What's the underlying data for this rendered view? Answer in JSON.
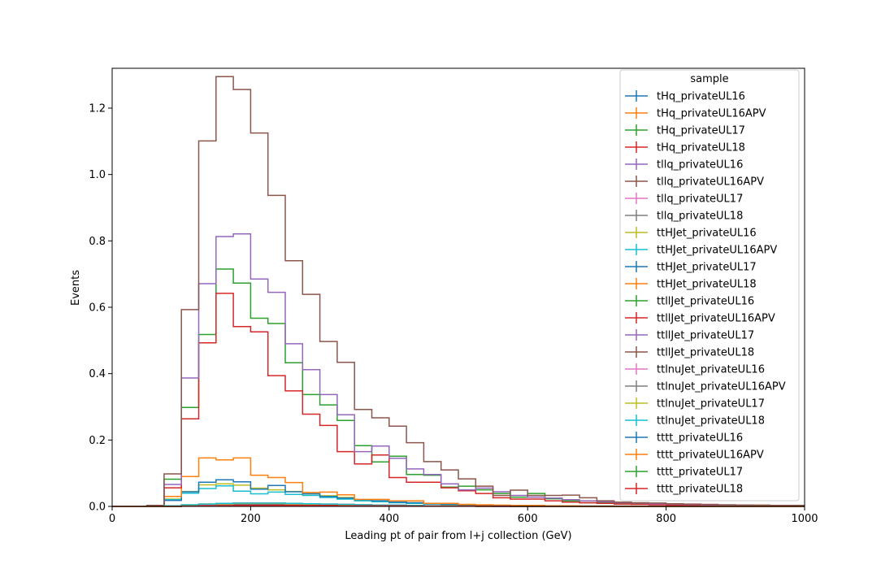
{
  "chart_data": {
    "type": "step-histogram",
    "xlabel": "Leading pt of pair from l+j collection (GeV)",
    "ylabel": "Events",
    "xlim": [
      0,
      1000
    ],
    "ylim": [
      0,
      1.32
    ],
    "xticks": [
      0,
      200,
      400,
      600,
      800,
      1000
    ],
    "yticks": [
      0.0,
      0.2,
      0.4,
      0.6,
      0.8,
      1.0,
      1.2
    ],
    "grid": false,
    "legend": {
      "title": "sample",
      "placement": "top-right"
    },
    "bin_edges": [
      0,
      25,
      50,
      75,
      100,
      125,
      150,
      175,
      200,
      225,
      250,
      275,
      300,
      325,
      350,
      375,
      400,
      425,
      450,
      475,
      500,
      525,
      550,
      575,
      600,
      625,
      650,
      675,
      700,
      725,
      750,
      775,
      800,
      825,
      850,
      875,
      900,
      925,
      950,
      975,
      1000
    ],
    "series": [
      {
        "name": "tHq_privateUL16",
        "color": "#1f77b4",
        "values": [
          0,
          0,
          0,
          0.001,
          0.002,
          0.003,
          0.004,
          0.004,
          0.005,
          0.005,
          0.004,
          0.004,
          0.003,
          0.003,
          0.002,
          0.002,
          0.002,
          0.001,
          0.001,
          0.001,
          0.001,
          0,
          0,
          0,
          0,
          0,
          0,
          0,
          0,
          0,
          0,
          0,
          0,
          0,
          0,
          0,
          0,
          0,
          0,
          0
        ]
      },
      {
        "name": "tHq_privateUL16APV",
        "color": "#ff7f0e",
        "values": [
          0,
          0,
          0,
          0.001,
          0.002,
          0.003,
          0.004,
          0.004,
          0.005,
          0.005,
          0.004,
          0.004,
          0.003,
          0.003,
          0.002,
          0.002,
          0.002,
          0.001,
          0.001,
          0.001,
          0.001,
          0,
          0,
          0,
          0,
          0,
          0,
          0,
          0,
          0,
          0,
          0,
          0,
          0,
          0,
          0,
          0,
          0,
          0,
          0
        ]
      },
      {
        "name": "tHq_privateUL17",
        "color": "#2ca02c",
        "values": [
          0,
          0,
          0,
          0.002,
          0.004,
          0.006,
          0.008,
          0.009,
          0.009,
          0.009,
          0.008,
          0.007,
          0.006,
          0.005,
          0.004,
          0.004,
          0.003,
          0.003,
          0.002,
          0.002,
          0.001,
          0.001,
          0.001,
          0,
          0,
          0,
          0,
          0,
          0,
          0,
          0,
          0,
          0,
          0,
          0,
          0,
          0,
          0,
          0,
          0
        ]
      },
      {
        "name": "tHq_privateUL18",
        "color": "#d62728",
        "values": [
          0,
          0,
          0,
          0.002,
          0.004,
          0.007,
          0.009,
          0.01,
          0.01,
          0.01,
          0.009,
          0.008,
          0.007,
          0.006,
          0.005,
          0.004,
          0.004,
          0.003,
          0.002,
          0.002,
          0.002,
          0.001,
          0.001,
          0,
          0,
          0,
          0,
          0,
          0,
          0,
          0,
          0,
          0,
          0,
          0,
          0,
          0,
          0,
          0,
          0
        ]
      },
      {
        "name": "tllq_privateUL16",
        "color": "#9467bd",
        "values": [
          0,
          0,
          0,
          0.001,
          0.003,
          0.005,
          0.006,
          0.007,
          0.007,
          0.007,
          0.006,
          0.005,
          0.005,
          0.004,
          0.003,
          0.003,
          0.002,
          0.002,
          0.002,
          0.001,
          0.001,
          0.001,
          0,
          0,
          0,
          0,
          0,
          0,
          0,
          0,
          0,
          0,
          0,
          0,
          0,
          0,
          0,
          0,
          0,
          0
        ]
      },
      {
        "name": "tllq_privateUL16APV",
        "color": "#8c564b",
        "values": [
          0,
          0,
          0,
          0.001,
          0.003,
          0.005,
          0.006,
          0.007,
          0.007,
          0.007,
          0.006,
          0.005,
          0.005,
          0.004,
          0.003,
          0.003,
          0.002,
          0.002,
          0.002,
          0.001,
          0.001,
          0.001,
          0,
          0,
          0,
          0,
          0,
          0,
          0,
          0,
          0,
          0,
          0,
          0,
          0,
          0,
          0,
          0,
          0,
          0
        ]
      },
      {
        "name": "tllq_privateUL17",
        "color": "#e377c2",
        "values": [
          0,
          0,
          0,
          0.001,
          0.003,
          0.005,
          0.007,
          0.008,
          0.008,
          0.008,
          0.007,
          0.006,
          0.005,
          0.004,
          0.004,
          0.003,
          0.003,
          0.002,
          0.002,
          0.001,
          0.001,
          0.001,
          0,
          0,
          0,
          0,
          0,
          0,
          0,
          0,
          0,
          0,
          0,
          0,
          0,
          0,
          0,
          0,
          0,
          0
        ]
      },
      {
        "name": "tllq_privateUL18",
        "color": "#7f7f7f",
        "values": [
          0,
          0,
          0,
          0.001,
          0.003,
          0.005,
          0.007,
          0.008,
          0.008,
          0.008,
          0.007,
          0.006,
          0.005,
          0.004,
          0.004,
          0.003,
          0.003,
          0.002,
          0.002,
          0.001,
          0.001,
          0.001,
          0,
          0,
          0,
          0,
          0,
          0,
          0,
          0,
          0,
          0,
          0,
          0,
          0,
          0,
          0,
          0,
          0,
          0
        ]
      },
      {
        "name": "ttHJet_privateUL16",
        "color": "#bcbd22",
        "values": [
          0,
          0,
          0,
          0.022,
          0.045,
          0.065,
          0.068,
          0.064,
          0.055,
          0.05,
          0.045,
          0.038,
          0.032,
          0.027,
          0.02,
          0.017,
          0.013,
          0.011,
          0.008,
          0.006,
          0.005,
          0.004,
          0.003,
          0.002,
          0.002,
          0.001,
          0.001,
          0.001,
          0.001,
          0,
          0,
          0,
          0,
          0,
          0,
          0,
          0,
          0,
          0,
          0
        ]
      },
      {
        "name": "ttHJet_privateUL16APV",
        "color": "#17becf",
        "values": [
          0,
          0,
          0,
          0.02,
          0.04,
          0.054,
          0.062,
          0.046,
          0.038,
          0.043,
          0.036,
          0.033,
          0.027,
          0.022,
          0.017,
          0.014,
          0.011,
          0.009,
          0.007,
          0.006,
          0.004,
          0.003,
          0.003,
          0.002,
          0.002,
          0.001,
          0.001,
          0.001,
          0.001,
          0,
          0,
          0,
          0,
          0,
          0,
          0,
          0,
          0,
          0,
          0
        ]
      },
      {
        "name": "ttHJet_privateUL17",
        "color": "#1f77b4",
        "values": [
          0,
          0,
          0,
          0.018,
          0.044,
          0.073,
          0.08,
          0.074,
          0.052,
          0.063,
          0.044,
          0.038,
          0.03,
          0.025,
          0.02,
          0.017,
          0.013,
          0.011,
          0.008,
          0.007,
          0.005,
          0.004,
          0.003,
          0.002,
          0.002,
          0.002,
          0.001,
          0.001,
          0.001,
          0.001,
          0,
          0,
          0,
          0,
          0,
          0,
          0,
          0,
          0,
          0
        ]
      },
      {
        "name": "ttHJet_privateUL18",
        "color": "#ff7f0e",
        "values": [
          0,
          0,
          0,
          0.03,
          0.09,
          0.146,
          0.14,
          0.146,
          0.094,
          0.087,
          0.072,
          0.042,
          0.043,
          0.035,
          0.021,
          0.021,
          0.017,
          0.017,
          0.009,
          0.009,
          0.006,
          0.005,
          0.004,
          0.003,
          0.003,
          0.002,
          0.002,
          0.001,
          0.001,
          0.001,
          0,
          0,
          0,
          0,
          0,
          0,
          0,
          0,
          0,
          0
        ]
      },
      {
        "name": "ttllJet_privateUL16",
        "color": "#2ca02c",
        "values": [
          0,
          0,
          0.002,
          0.082,
          0.298,
          0.518,
          0.715,
          0.673,
          0.567,
          0.551,
          0.433,
          0.337,
          0.306,
          0.259,
          0.183,
          0.134,
          0.151,
          0.096,
          0.094,
          0.058,
          0.061,
          0.05,
          0.039,
          0.028,
          0.039,
          0.023,
          0.017,
          0.011,
          0.012,
          0.009,
          0.007,
          0.006,
          0.005,
          0.004,
          0.004,
          0.003,
          0.003,
          0.002,
          0.002,
          0.002
        ]
      },
      {
        "name": "ttllJet_privateUL16APV",
        "color": "#d62728",
        "values": [
          0,
          0,
          0.002,
          0.056,
          0.264,
          0.493,
          0.642,
          0.542,
          0.526,
          0.394,
          0.348,
          0.278,
          0.244,
          0.165,
          0.128,
          0.155,
          0.087,
          0.073,
          0.073,
          0.056,
          0.047,
          0.039,
          0.026,
          0.022,
          0.022,
          0.017,
          0.013,
          0.011,
          0.009,
          0.007,
          0.006,
          0.005,
          0.004,
          0.004,
          0.003,
          0.003,
          0.002,
          0.002,
          0.002,
          0.002
        ]
      },
      {
        "name": "ttllJet_privateUL17",
        "color": "#9467bd",
        "values": [
          0,
          0,
          0.002,
          0.066,
          0.387,
          0.671,
          0.813,
          0.821,
          0.685,
          0.645,
          0.49,
          0.412,
          0.337,
          0.276,
          0.165,
          0.182,
          0.145,
          0.113,
          0.096,
          0.068,
          0.05,
          0.055,
          0.044,
          0.033,
          0.028,
          0.025,
          0.02,
          0.017,
          0.014,
          0.011,
          0.01,
          0.008,
          0.007,
          0.006,
          0.005,
          0.004,
          0.004,
          0.003,
          0.003,
          0.002
        ]
      },
      {
        "name": "ttllJet_privateUL18",
        "color": "#8c564b",
        "values": [
          0,
          0,
          0.003,
          0.098,
          0.593,
          1.101,
          1.295,
          1.256,
          1.125,
          0.937,
          0.74,
          0.639,
          0.497,
          0.434,
          0.292,
          0.267,
          0.242,
          0.192,
          0.135,
          0.11,
          0.083,
          0.061,
          0.033,
          0.049,
          0.033,
          0.033,
          0.034,
          0.026,
          0.017,
          0.013,
          0.011,
          0.01,
          0.008,
          0.007,
          0.006,
          0.005,
          0.004,
          0.004,
          0.003,
          0.003
        ]
      },
      {
        "name": "ttlnuJet_privateUL16",
        "color": "#e377c2",
        "values": [
          0,
          0,
          0,
          0.002,
          0.004,
          0.006,
          0.007,
          0.008,
          0.008,
          0.008,
          0.007,
          0.007,
          0.006,
          0.005,
          0.004,
          0.004,
          0.003,
          0.003,
          0.002,
          0.002,
          0.001,
          0.001,
          0.001,
          0,
          0,
          0,
          0,
          0,
          0,
          0,
          0,
          0,
          0,
          0,
          0,
          0,
          0,
          0,
          0,
          0
        ]
      },
      {
        "name": "ttlnuJet_privateUL16APV",
        "color": "#7f7f7f",
        "values": [
          0,
          0,
          0,
          0.002,
          0.004,
          0.006,
          0.007,
          0.008,
          0.008,
          0.008,
          0.007,
          0.007,
          0.006,
          0.005,
          0.004,
          0.004,
          0.003,
          0.003,
          0.002,
          0.002,
          0.001,
          0.001,
          0.001,
          0,
          0,
          0,
          0,
          0,
          0,
          0,
          0,
          0,
          0,
          0,
          0,
          0,
          0,
          0,
          0,
          0
        ]
      },
      {
        "name": "ttlnuJet_privateUL17",
        "color": "#bcbd22",
        "values": [
          0,
          0,
          0,
          0.002,
          0.005,
          0.007,
          0.008,
          0.009,
          0.009,
          0.009,
          0.008,
          0.007,
          0.006,
          0.005,
          0.005,
          0.004,
          0.003,
          0.003,
          0.002,
          0.002,
          0.002,
          0.001,
          0.001,
          0,
          0,
          0,
          0,
          0,
          0,
          0,
          0,
          0,
          0,
          0,
          0,
          0,
          0,
          0,
          0,
          0
        ]
      },
      {
        "name": "ttlnuJet_privateUL18",
        "color": "#17becf",
        "values": [
          0,
          0,
          0,
          0.002,
          0.005,
          0.007,
          0.009,
          0.01,
          0.01,
          0.01,
          0.009,
          0.008,
          0.007,
          0.006,
          0.005,
          0.004,
          0.004,
          0.003,
          0.002,
          0.002,
          0.002,
          0.001,
          0.001,
          0,
          0,
          0,
          0,
          0,
          0,
          0,
          0,
          0,
          0,
          0,
          0,
          0,
          0,
          0,
          0,
          0
        ]
      },
      {
        "name": "tttt_privateUL16",
        "color": "#1f77b4",
        "values": [
          0,
          0,
          0,
          0,
          0.001,
          0.001,
          0.001,
          0.002,
          0.002,
          0.002,
          0.002,
          0.002,
          0.002,
          0.002,
          0.002,
          0.002,
          0.001,
          0.001,
          0.001,
          0.001,
          0.001,
          0.001,
          0.001,
          0,
          0,
          0,
          0,
          0,
          0,
          0,
          0,
          0,
          0,
          0,
          0,
          0,
          0,
          0,
          0,
          0
        ]
      },
      {
        "name": "tttt_privateUL16APV",
        "color": "#ff7f0e",
        "values": [
          0,
          0,
          0,
          0,
          0.001,
          0.001,
          0.001,
          0.002,
          0.002,
          0.002,
          0.002,
          0.002,
          0.002,
          0.002,
          0.002,
          0.002,
          0.001,
          0.001,
          0.001,
          0.001,
          0.001,
          0.001,
          0.001,
          0,
          0,
          0,
          0,
          0,
          0,
          0,
          0,
          0,
          0,
          0,
          0,
          0,
          0,
          0,
          0,
          0
        ]
      },
      {
        "name": "tttt_privateUL17",
        "color": "#2ca02c",
        "values": [
          0,
          0,
          0,
          0,
          0.001,
          0.002,
          0.002,
          0.003,
          0.003,
          0.003,
          0.003,
          0.003,
          0.003,
          0.002,
          0.002,
          0.002,
          0.002,
          0.001,
          0.001,
          0.001,
          0.001,
          0.001,
          0.001,
          0,
          0,
          0,
          0,
          0,
          0,
          0,
          0,
          0,
          0,
          0,
          0,
          0,
          0,
          0,
          0,
          0
        ]
      },
      {
        "name": "tttt_privateUL18",
        "color": "#d62728",
        "values": [
          0,
          0,
          0,
          0,
          0.001,
          0.002,
          0.002,
          0.003,
          0.003,
          0.003,
          0.003,
          0.003,
          0.003,
          0.002,
          0.002,
          0.002,
          0.002,
          0.001,
          0.001,
          0.001,
          0.001,
          0.001,
          0.001,
          0,
          0,
          0,
          0,
          0,
          0,
          0,
          0,
          0,
          0,
          0,
          0,
          0,
          0,
          0,
          0,
          0
        ]
      }
    ]
  }
}
